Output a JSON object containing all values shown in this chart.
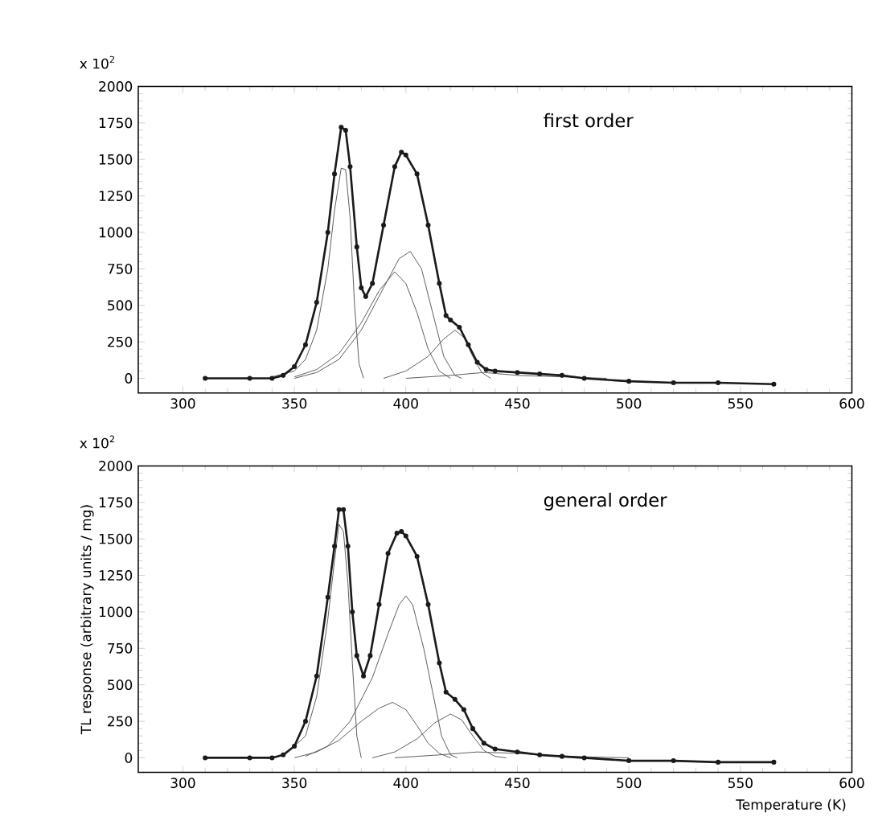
{
  "chart_data": [
    {
      "type": "line",
      "annotations": [
        "x 10$^{2}$",
        "first order"
      ],
      "xlim": [
        280,
        600
      ],
      "ylim": [
        -100,
        2000
      ],
      "xticks": [
        300,
        350,
        400,
        450,
        500,
        550,
        600
      ],
      "yticks": [
        0,
        250,
        500,
        750,
        1000,
        1250,
        1500,
        1750,
        2000
      ],
      "series": [
        {
          "color": "#1a1a1a",
          "marker": "circle",
          "x": [
            310,
            330,
            340,
            345,
            350,
            355,
            360,
            365,
            368,
            371,
            373,
            375,
            378,
            380,
            382,
            385,
            390,
            395,
            398,
            400,
            405,
            410,
            415,
            418,
            420,
            424,
            428,
            432,
            436,
            440,
            450,
            460,
            470,
            480,
            500,
            520,
            540,
            565
          ],
          "values": [
            0,
            0,
            0,
            20,
            80,
            230,
            520,
            1000,
            1400,
            1720,
            1700,
            1450,
            900,
            620,
            560,
            650,
            1050,
            1450,
            1550,
            1530,
            1400,
            1050,
            650,
            430,
            400,
            350,
            230,
            110,
            60,
            50,
            40,
            30,
            20,
            0,
            -20,
            -30,
            -30,
            -40
          ]
        },
        {
          "color": "#555555",
          "x": [
            340,
            350,
            355,
            360,
            365,
            368,
            371,
            373,
            375,
            377,
            379,
            381
          ],
          "values": [
            10,
            50,
            130,
            330,
            750,
            1150,
            1440,
            1430,
            1100,
            500,
            100,
            0
          ]
        },
        {
          "color": "#555555",
          "x": [
            350,
            360,
            370,
            380,
            388,
            395,
            400,
            405,
            410,
            415,
            420
          ],
          "values": [
            10,
            60,
            170,
            380,
            600,
            730,
            650,
            450,
            200,
            50,
            0
          ]
        },
        {
          "color": "#555555",
          "x": [
            350,
            360,
            370,
            380,
            390,
            397,
            402,
            407,
            412,
            417,
            422,
            425
          ],
          "values": [
            0,
            40,
            130,
            330,
            620,
            820,
            870,
            750,
            450,
            150,
            20,
            0
          ]
        },
        {
          "color": "#555555",
          "x": [
            390,
            400,
            410,
            417,
            422,
            426,
            430,
            434,
            438
          ],
          "values": [
            0,
            50,
            150,
            270,
            330,
            280,
            150,
            40,
            0
          ]
        },
        {
          "color": "#555555",
          "x": [
            400,
            420,
            435,
            450,
            470,
            490
          ],
          "values": [
            0,
            20,
            40,
            20,
            10,
            0
          ]
        }
      ]
    },
    {
      "type": "line",
      "annotations": [
        "x 10$^{2}$",
        "general order"
      ],
      "xlabel": "Temperature (K)",
      "ylabel": "TL response (arbitrary units / mg)",
      "xlim": [
        280,
        600
      ],
      "ylim": [
        -100,
        2000
      ],
      "xticks": [
        300,
        350,
        400,
        450,
        500,
        550,
        600
      ],
      "yticks": [
        0,
        250,
        500,
        750,
        1000,
        1250,
        1500,
        1750,
        2000
      ],
      "series": [
        {
          "color": "#1a1a1a",
          "marker": "circle",
          "x": [
            310,
            330,
            340,
            345,
            350,
            355,
            360,
            365,
            368,
            370,
            372,
            374,
            376,
            378,
            381,
            384,
            388,
            392,
            396,
            398,
            400,
            405,
            410,
            415,
            418,
            422,
            426,
            430,
            435,
            440,
            450,
            460,
            470,
            480,
            500,
            520,
            540,
            565
          ],
          "values": [
            0,
            0,
            0,
            20,
            80,
            250,
            560,
            1100,
            1450,
            1700,
            1700,
            1450,
            1000,
            700,
            560,
            700,
            1050,
            1400,
            1540,
            1550,
            1520,
            1380,
            1050,
            650,
            450,
            400,
            330,
            200,
            100,
            60,
            40,
            20,
            10,
            0,
            -20,
            -20,
            -30,
            -30
          ]
        },
        {
          "color": "#555555",
          "x": [
            345,
            355,
            360,
            365,
            368,
            370,
            372,
            374,
            376,
            378,
            380
          ],
          "values": [
            10,
            150,
            420,
            950,
            1350,
            1600,
            1550,
            1200,
            650,
            150,
            0
          ]
        },
        {
          "color": "#555555",
          "x": [
            350,
            360,
            370,
            380,
            388,
            394,
            400,
            405,
            410,
            415,
            420
          ],
          "values": [
            0,
            40,
            120,
            250,
            340,
            380,
            330,
            220,
            100,
            30,
            0
          ]
        },
        {
          "color": "#555555",
          "x": [
            355,
            365,
            375,
            385,
            392,
            397,
            400,
            403,
            408,
            412,
            416,
            420,
            423
          ],
          "values": [
            10,
            80,
            250,
            550,
            850,
            1050,
            1110,
            1050,
            750,
            450,
            150,
            20,
            0
          ]
        },
        {
          "color": "#555555",
          "x": [
            385,
            395,
            405,
            413,
            420,
            425,
            430,
            435,
            440,
            445
          ],
          "values": [
            0,
            40,
            130,
            240,
            300,
            260,
            150,
            50,
            10,
            0
          ]
        },
        {
          "color": "#555555",
          "x": [
            395,
            415,
            432,
            450,
            470,
            500
          ],
          "values": [
            0,
            20,
            40,
            30,
            10,
            0
          ]
        }
      ]
    }
  ]
}
